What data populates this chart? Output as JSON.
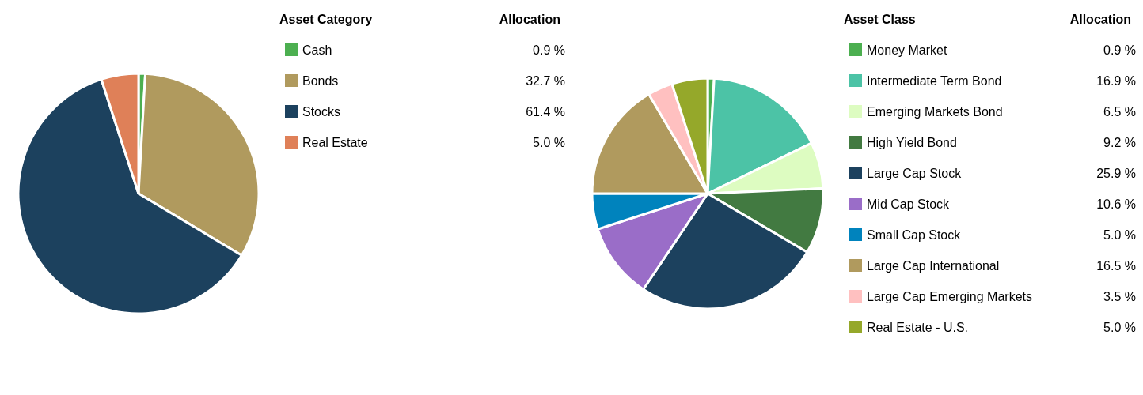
{
  "chart_data": [
    {
      "type": "pie",
      "legend_title": "Asset Category",
      "annotations": [
        "Allocation"
      ],
      "legend": "right",
      "categories": [
        "Cash",
        "Bonds",
        "Stocks",
        "Real Estate"
      ],
      "values": [
        0.9,
        32.7,
        61.4,
        5.0
      ],
      "value_labels": [
        "0.9 %",
        "32.7 %",
        "61.4 %",
        "5.0 %"
      ],
      "colors": [
        "#4caf50",
        "#b09a5e",
        "#1c415e",
        "#df8058"
      ]
    },
    {
      "type": "pie",
      "legend_title": "Asset Class",
      "annotations": [
        "Allocation"
      ],
      "legend": "right",
      "categories": [
        "Money Market",
        "Intermediate Term Bond",
        "Emerging Markets Bond",
        "High Yield Bond",
        "Large Cap Stock",
        "Mid Cap Stock",
        "Small Cap Stock",
        "Large Cap International",
        "Large Cap Emerging Markets",
        "Real Estate - U.S."
      ],
      "values": [
        0.9,
        16.9,
        6.5,
        9.2,
        25.9,
        10.6,
        5.0,
        16.5,
        3.5,
        5.0
      ],
      "value_labels": [
        "0.9 %",
        "16.9 %",
        "6.5 %",
        "9.2 %",
        "25.9 %",
        "10.6 %",
        "5.0 %",
        "16.5 %",
        "3.5 %",
        "5.0 %"
      ],
      "colors": [
        "#4caf50",
        "#4cc3a6",
        "#ddfcc1",
        "#427a41",
        "#1c415e",
        "#9a6dc8",
        "#0083bd",
        "#b09a5e",
        "#ffc0c0",
        "#95a82a"
      ]
    }
  ]
}
